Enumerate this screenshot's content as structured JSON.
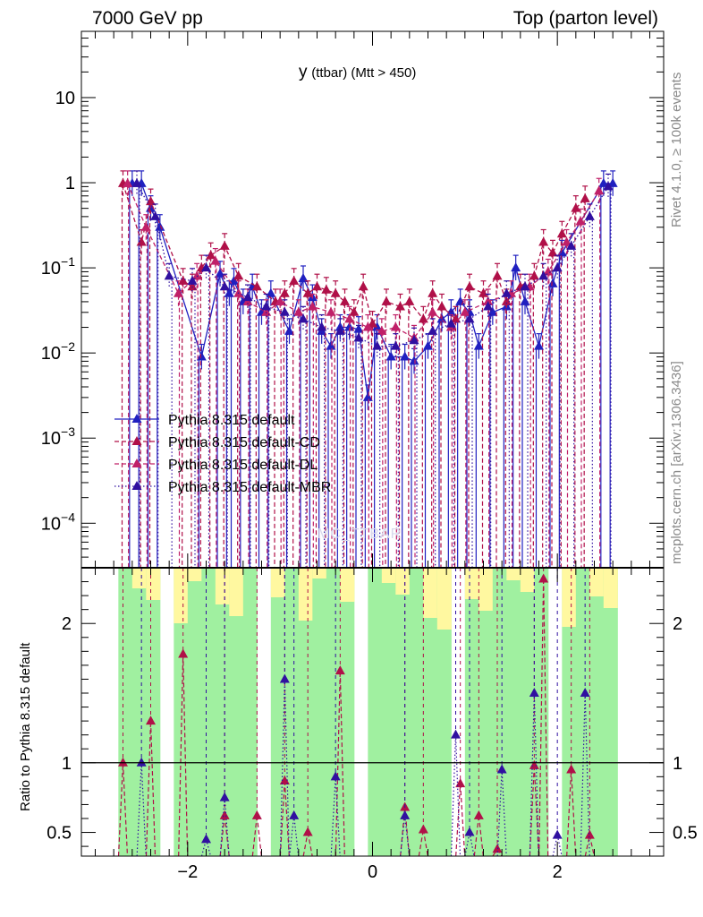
{
  "header": {
    "left": "7000 GeV pp",
    "right": "Top (parton level)"
  },
  "sidebar": {
    "rivet": "Rivet 4.1.0, ≥ 100k events",
    "mcplots": "mcplots.cern.ch [arXiv:1306.3436]"
  },
  "watermark": "MC_TTBAR",
  "colors": {
    "default": "#2020c0",
    "cd": "#b01048",
    "dl": "#c02068",
    "mbr": "#3010a0",
    "band_green": "#a0f0a0",
    "band_yellow": "#fff8a0"
  },
  "chart_data": [
    {
      "type": "line",
      "title_main": "y",
      "title_sub": "(ttbar) (Mtt > 450)",
      "xlabel": "",
      "ylabel": "",
      "yscale": "log",
      "xlim": [
        -3.15,
        3.15
      ],
      "ylim": [
        3e-05,
        60
      ],
      "yticks": [
        {
          "value": 0.0001,
          "base": "10",
          "exp": "−4"
        },
        {
          "value": 0.001,
          "base": "10",
          "exp": "−3"
        },
        {
          "value": 0.01,
          "base": "10",
          "exp": "−2"
        },
        {
          "value": 0.1,
          "base": "10",
          "exp": "−1"
        },
        {
          "value": 1,
          "base": "1",
          "exp": ""
        },
        {
          "value": 10,
          "base": "10",
          "exp": ""
        }
      ],
      "legend": [
        "Pythia 8.315 default",
        "Pythia 8.315 default-CD",
        "Pythia 8.315 default-DL",
        "Pythia 8.315 default-MBR"
      ],
      "legend_position": "center-left",
      "series": [
        {
          "name": "Pythia 8.315 default",
          "style": "solid",
          "points": [
            [
              -2.6,
              0.98
            ],
            [
              -2.5,
              0.98
            ],
            [
              -2.4,
              0.5
            ],
            [
              -2.3,
              0.3
            ],
            [
              -1.85,
              0.009
            ],
            [
              -1.65,
              0.085
            ],
            [
              -1.55,
              0.05
            ],
            [
              -1.5,
              0.07
            ],
            [
              -1.4,
              0.04
            ],
            [
              -1.3,
              0.06
            ],
            [
              -1.2,
              0.03
            ],
            [
              -1.1,
              0.05
            ],
            [
              -0.9,
              0.018
            ],
            [
              -0.75,
              0.075
            ],
            [
              -0.65,
              0.045
            ],
            [
              -0.55,
              0.018
            ],
            [
              -0.45,
              0.012
            ],
            [
              -0.35,
              0.02
            ],
            [
              -0.25,
              0.02
            ],
            [
              -0.15,
              0.019
            ],
            [
              -0.05,
              0.003
            ],
            [
              0.05,
              0.02
            ],
            [
              0.2,
              0.009
            ],
            [
              0.35,
              0.009
            ],
            [
              0.45,
              0.008
            ],
            [
              0.6,
              0.012
            ],
            [
              0.75,
              0.025
            ],
            [
              0.85,
              0.03
            ],
            [
              0.95,
              0.04
            ],
            [
              1.05,
              0.03
            ],
            [
              1.15,
              0.012
            ],
            [
              1.3,
              0.03
            ],
            [
              1.45,
              0.035
            ],
            [
              1.55,
              0.1
            ],
            [
              1.65,
              0.04
            ],
            [
              1.8,
              0.012
            ],
            [
              1.95,
              0.065
            ],
            [
              2.05,
              0.15
            ],
            [
              2.5,
              0.98
            ],
            [
              2.6,
              0.98
            ]
          ]
        },
        {
          "name": "Pythia 8.315 default-CD",
          "style": "dashed",
          "points": [
            [
              -2.7,
              0.98
            ],
            [
              -2.5,
              0.2
            ],
            [
              -2.4,
              0.6
            ],
            [
              -2.05,
              0.07
            ],
            [
              -1.95,
              0.06
            ],
            [
              -1.85,
              0.1
            ],
            [
              -1.75,
              0.14
            ],
            [
              -1.6,
              0.18
            ],
            [
              -1.45,
              0.08
            ],
            [
              -1.25,
              0.06
            ],
            [
              -1.05,
              0.04
            ],
            [
              -0.95,
              0.05
            ],
            [
              -0.85,
              0.07
            ],
            [
              -0.7,
              0.05
            ],
            [
              -0.6,
              0.06
            ],
            [
              -0.5,
              0.055
            ],
            [
              -0.4,
              0.05
            ],
            [
              -0.3,
              0.04
            ],
            [
              -0.2,
              0.03
            ],
            [
              -0.1,
              0.06
            ],
            [
              0.0,
              0.022
            ],
            [
              0.15,
              0.04
            ],
            [
              0.3,
              0.035
            ],
            [
              0.4,
              0.04
            ],
            [
              0.55,
              0.025
            ],
            [
              0.65,
              0.05
            ],
            [
              0.75,
              0.035
            ],
            [
              0.9,
              0.025
            ],
            [
              1.05,
              0.06
            ],
            [
              1.2,
              0.05
            ],
            [
              1.35,
              0.08
            ],
            [
              1.45,
              0.04
            ],
            [
              1.6,
              0.06
            ],
            [
              1.75,
              0.08
            ],
            [
              1.85,
              0.2
            ],
            [
              1.95,
              0.15
            ],
            [
              2.05,
              0.25
            ],
            [
              2.2,
              0.5
            ],
            [
              2.3,
              0.65
            ]
          ]
        },
        {
          "name": "Pythia 8.315 default-DL",
          "style": "dashed",
          "points": [
            [
              -2.65,
              0.98
            ],
            [
              -2.45,
              0.3
            ],
            [
              -2.1,
              0.05
            ],
            [
              -1.9,
              0.08
            ],
            [
              -1.7,
              0.12
            ],
            [
              -1.45,
              0.05
            ],
            [
              -1.35,
              0.04
            ],
            [
              -1.15,
              0.03
            ],
            [
              -1.0,
              0.04
            ],
            [
              -0.8,
              0.03
            ],
            [
              -0.65,
              0.035
            ],
            [
              -0.45,
              0.03
            ],
            [
              -0.25,
              0.025
            ],
            [
              -0.05,
              0.02
            ],
            [
              0.1,
              0.018
            ],
            [
              0.25,
              0.02
            ],
            [
              0.45,
              0.015
            ],
            [
              0.65,
              0.03
            ],
            [
              0.85,
              0.02
            ],
            [
              1.0,
              0.03
            ],
            [
              1.25,
              0.04
            ],
            [
              1.5,
              0.05
            ],
            [
              1.7,
              0.06
            ],
            [
              1.9,
              0.09
            ],
            [
              2.1,
              0.2
            ],
            [
              2.25,
              0.35
            ],
            [
              2.45,
              0.8
            ]
          ]
        },
        {
          "name": "Pythia 8.315 default-MBR",
          "style": "dotted",
          "points": [
            [
              -2.55,
              0.98
            ],
            [
              -2.35,
              0.4
            ],
            [
              -2.2,
              0.08
            ],
            [
              -1.95,
              0.07
            ],
            [
              -1.8,
              0.1
            ],
            [
              -1.6,
              0.06
            ],
            [
              -1.35,
              0.045
            ],
            [
              -1.15,
              0.035
            ],
            [
              -0.95,
              0.03
            ],
            [
              -0.75,
              0.025
            ],
            [
              -0.55,
              0.02
            ],
            [
              -0.35,
              0.018
            ],
            [
              -0.15,
              0.015
            ],
            [
              0.05,
              0.012
            ],
            [
              0.25,
              0.012
            ],
            [
              0.45,
              0.014
            ],
            [
              0.65,
              0.018
            ],
            [
              0.85,
              0.022
            ],
            [
              1.05,
              0.025
            ],
            [
              1.25,
              0.035
            ],
            [
              1.45,
              0.05
            ],
            [
              1.65,
              0.06
            ],
            [
              1.85,
              0.08
            ],
            [
              2.0,
              0.1
            ],
            [
              2.15,
              0.18
            ],
            [
              2.35,
              0.4
            ],
            [
              2.55,
              0.9
            ]
          ]
        }
      ]
    },
    {
      "type": "line",
      "xlabel": "",
      "ylabel": "Ratio to Pythia 8.315 default",
      "xlim": [
        -3.15,
        3.15
      ],
      "ylim": [
        0.33,
        2.4
      ],
      "xticks": [
        {
          "value": -2,
          "label": "−2"
        },
        {
          "value": 0,
          "label": "0"
        },
        {
          "value": 2,
          "label": "2"
        }
      ],
      "yticks": [
        {
          "value": 0.5,
          "label": "0.5"
        },
        {
          "value": 1,
          "label": "1"
        },
        {
          "value": 2,
          "label": "2"
        }
      ],
      "reference_line": 1,
      "series": [
        {
          "name": "Pythia 8.315 default-CD",
          "style": "dashed",
          "points": [
            [
              -2.7,
              1.0
            ],
            [
              -2.4,
              1.3
            ],
            [
              -2.05,
              1.78
            ],
            [
              -1.6,
              0.62
            ],
            [
              -1.25,
              0.62
            ],
            [
              -0.95,
              0.87
            ],
            [
              -0.7,
              0.5
            ],
            [
              -0.35,
              1.66
            ],
            [
              0.35,
              0.68
            ],
            [
              0.55,
              0.52
            ],
            [
              0.95,
              0.85
            ],
            [
              1.15,
              0.62
            ],
            [
              1.35,
              0.38
            ],
            [
              1.75,
              0.98
            ],
            [
              1.85,
              2.32
            ],
            [
              2.15,
              0.95
            ],
            [
              2.35,
              0.48
            ]
          ]
        },
        {
          "name": "Pythia 8.315 default-MBR",
          "style": "dotted",
          "points": [
            [
              -2.5,
              1.0
            ],
            [
              -1.8,
              0.45
            ],
            [
              -1.6,
              0.75
            ],
            [
              -0.95,
              1.6
            ],
            [
              -0.85,
              0.62
            ],
            [
              -0.4,
              0.9
            ],
            [
              0.35,
              0.62
            ],
            [
              0.9,
              1.2
            ],
            [
              1.05,
              0.5
            ],
            [
              1.4,
              0.95
            ],
            [
              1.75,
              1.5
            ],
            [
              2.0,
              0.48
            ],
            [
              2.3,
              1.5
            ]
          ]
        }
      ]
    }
  ]
}
